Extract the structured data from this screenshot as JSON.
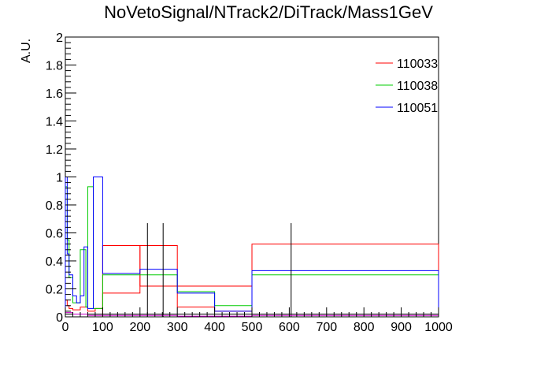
{
  "chart_data": {
    "type": "line",
    "title": "NoVetoSignal/NTrack2/DiTrack/Mass1GeV",
    "xlabel": "",
    "ylabel": "A.U.",
    "xlim": [
      0,
      1000
    ],
    "ylim": [
      0,
      2
    ],
    "x_ticks": [
      0,
      100,
      200,
      300,
      400,
      500,
      600,
      700,
      800,
      900,
      1000
    ],
    "x_tick_labels": [
      "0",
      "100",
      "200",
      "300",
      "400",
      "500",
      "600",
      "700",
      "800",
      "900",
      "1000"
    ],
    "y_ticks": [
      0,
      0.2,
      0.4,
      0.6,
      0.8,
      1,
      1.2,
      1.4,
      1.6,
      1.8,
      2
    ],
    "y_tick_labels": [
      "0",
      "0.2",
      "0.4",
      "0.6",
      "0.8",
      "1",
      "1.2",
      "1.4",
      "1.6",
      "1.8",
      "2"
    ],
    "grid": false,
    "legend_position": "top-right",
    "series": [
      {
        "name": "110033",
        "color": "#ff0000",
        "edges": [
          0,
          5,
          10,
          20,
          40,
          60,
          80,
          100,
          160,
          200,
          300,
          500,
          1000
        ],
        "values": [
          0.12,
          0.08,
          0.06,
          0.05,
          0.07,
          0.04,
          0.06,
          0.17,
          0.17,
          0.51,
          0.22,
          0.52
        ],
        "extra_steps": [
          {
            "edges": [
              100,
              200,
              300,
              400,
              500
            ],
            "values": [
              0.51,
              0.22,
              0.07,
              0.04
            ]
          }
        ]
      },
      {
        "name": "110038",
        "color": "#00cc00",
        "edges": [
          0,
          5,
          10,
          20,
          40,
          55,
          60,
          75,
          100,
          160,
          300,
          400,
          500,
          1000
        ],
        "values": [
          0.93,
          0.55,
          0.28,
          0.1,
          0.48,
          0.07,
          0.93,
          0.06,
          0.3,
          0.3,
          0.18,
          0.08,
          0.3
        ]
      },
      {
        "name": "110051",
        "color": "#0000ff",
        "edges": [
          0,
          5,
          10,
          20,
          30,
          40,
          50,
          60,
          75,
          100,
          200,
          300,
          400,
          500,
          1000
        ],
        "values": [
          1.0,
          0.45,
          0.3,
          0.15,
          0.1,
          0.15,
          0.5,
          0.06,
          1.0,
          0.31,
          0.34,
          0.17,
          0.04,
          0.33
        ]
      },
      {
        "name": "",
        "color": "#000000",
        "edges": [
          0,
          60,
          100,
          500,
          1000
        ],
        "values": [
          0.02,
          0.02,
          0.02,
          0.02
        ],
        "error_bars": [
          {
            "x": 220,
            "low": 0,
            "high": 0.67
          },
          {
            "x": 262,
            "low": 0,
            "high": 0.67
          },
          {
            "x": 605,
            "low": 0,
            "high": 0.67
          }
        ]
      },
      {
        "name": "",
        "color": "#cc00cc",
        "edges": [
          0,
          20,
          60,
          100,
          300,
          500,
          1000
        ],
        "values": [
          0.03,
          0.02,
          0.01,
          0.01,
          0.005,
          0.01
        ]
      }
    ]
  }
}
